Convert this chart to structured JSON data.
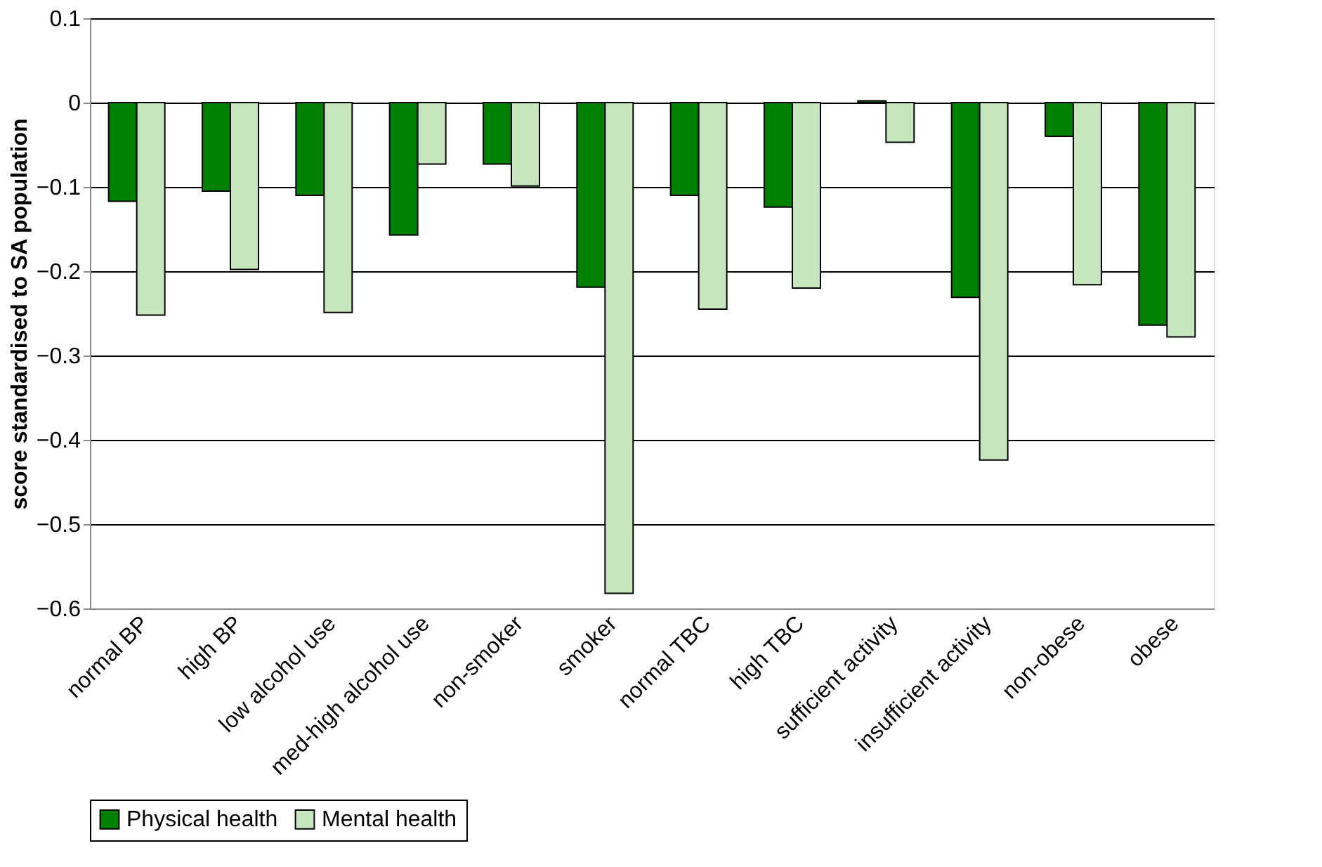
{
  "chart_data": {
    "type": "bar",
    "ylabel": "score standardised to SA population",
    "categories": [
      "normal BP",
      "high BP",
      "low alcohol use",
      "med-high alcohol use",
      "non-smoker",
      "smoker",
      "normal TBC",
      "high TBC",
      "sufficient activity",
      "insufficient activity",
      "non-obese",
      "obese"
    ],
    "series": [
      {
        "name": "Physical health",
        "color": "#008000",
        "values": [
          -0.117,
          -0.105,
          -0.11,
          -0.157,
          -0.073,
          -0.219,
          -0.11,
          -0.124,
          0.002,
          -0.231,
          -0.04,
          -0.264
        ]
      },
      {
        "name": "Mental health",
        "color": "#c6e6bd",
        "values": [
          -0.252,
          -0.198,
          -0.249,
          -0.073,
          -0.099,
          -0.582,
          -0.245,
          -0.22,
          -0.047,
          -0.424,
          -0.216,
          -0.278
        ]
      }
    ],
    "ylim": [
      -0.6,
      0.1
    ],
    "yticks": [
      -0.6,
      -0.5,
      -0.4,
      -0.3,
      -0.2,
      -0.1,
      0,
      0.1
    ],
    "grid": "y",
    "legend": "bottom"
  }
}
